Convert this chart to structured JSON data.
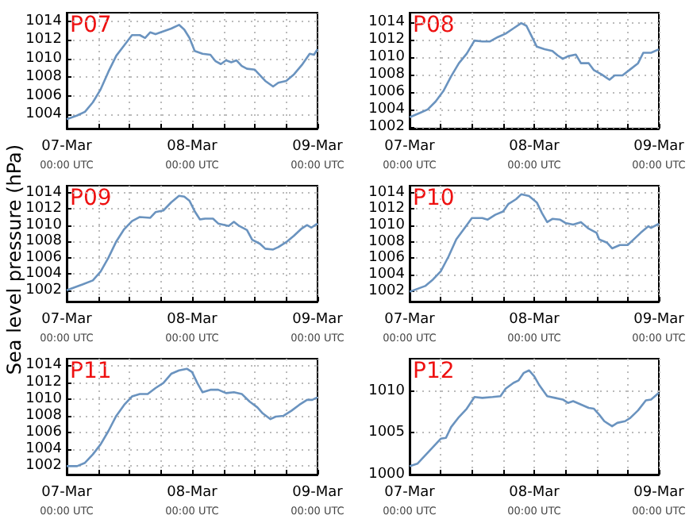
{
  "chart_data": [
    {
      "type": "line",
      "title": "P07",
      "x": [
        "--03-07T00:00",
        "--03-07T02:00",
        "--03-07T03:30",
        "--03-07T05:00",
        "--03-07T06:30",
        "--03-07T08:00",
        "--03-07T09:30",
        "--03-07T11:00",
        "--03-07T12:30",
        "--03-07T14:00",
        "--03-07T15:00",
        "--03-07T16:00",
        "--03-07T17:00",
        "--03-07T18:30",
        "--03-07T20:00",
        "--03-07T21:30",
        "--03-07T22:30",
        "--03-07T23:30",
        "--03-08T00:30",
        "--03-08T02:00",
        "--03-08T03:30",
        "--03-08T04:30",
        "--03-08T05:30",
        "--03-08T06:30",
        "--03-08T07:30",
        "--03-08T08:30",
        "--03-08T09:30",
        "--03-08T10:30",
        "--03-08T12:00",
        "--03-08T13:00",
        "--03-08T14:00",
        "--03-08T15:30",
        "--03-08T16:30",
        "--03-08T18:00",
        "--03-08T19:30",
        "--03-08T21:00",
        "--03-08T22:30",
        "--03-08T23:20",
        "--03-09T00:00"
      ],
      "series": [
        {
          "color": "#6a93bf",
          "values": [
            1003.5,
            1003.9,
            1004.3,
            1005.3,
            1006.7,
            1008.6,
            1010.3,
            1011.4,
            1012.5,
            1012.5,
            1012.2,
            1012.8,
            1012.6,
            1012.9,
            1013.2,
            1013.6,
            1013.1,
            1012.2,
            1010.8,
            1010.5,
            1010.4,
            1009.7,
            1009.4,
            1009.8,
            1009.6,
            1009.8,
            1009.2,
            1008.9,
            1008.8,
            1008.2,
            1007.6,
            1007.0,
            1007.4,
            1007.6,
            1008.3,
            1009.3,
            1010.5,
            1010.4,
            1011.0
          ]
        }
      ],
      "xlim": [
        "--03-07T00:00",
        "--03-09T00:00"
      ],
      "xticks": [
        {
          "value": "--03-07T00:00",
          "label": "07-Mar\n00:00 UTC"
        },
        {
          "value": "--03-07T06:00",
          "label": null
        },
        {
          "value": "--03-07T12:00",
          "label": null
        },
        {
          "value": "--03-07T18:00",
          "label": null
        },
        {
          "value": "--03-08T00:00",
          "label": "08-Mar\n00:00 UTC"
        },
        {
          "value": "--03-08T06:00",
          "label": null
        },
        {
          "value": "--03-08T12:00",
          "label": null
        },
        {
          "value": "--03-08T18:00",
          "label": null
        },
        {
          "value": "--03-09T00:00",
          "label": "09-Mar\n00:00 UTC"
        }
      ],
      "ylim": [
        1002.5,
        1014.9
      ],
      "yticks": [
        1004,
        1006,
        1008,
        1010,
        1012,
        1014
      ],
      "grid": true,
      "marker": "none",
      "line_style": "solid"
    },
    {
      "type": "line",
      "title": "P08",
      "x": [
        "--03-07T00:00",
        "--03-07T02:00",
        "--03-07T03:30",
        "--03-07T05:00",
        "--03-07T06:30",
        "--03-07T08:00",
        "--03-07T09:30",
        "--03-07T11:00",
        "--03-07T12:30",
        "--03-07T14:00",
        "--03-07T15:30",
        "--03-07T17:00",
        "--03-07T18:30",
        "--03-07T20:00",
        "--03-07T21:30",
        "--03-07T22:30",
        "--03-07T23:30",
        "--03-08T00:30",
        "--03-08T02:00",
        "--03-08T03:30",
        "--03-08T04:30",
        "--03-08T05:30",
        "--03-08T06:30",
        "--03-08T08:00",
        "--03-08T09:00",
        "--03-08T10:30",
        "--03-08T11:30",
        "--03-08T13:00",
        "--03-08T14:30",
        "--03-08T15:30",
        "--03-08T17:00",
        "--03-08T18:30",
        "--03-08T20:00",
        "--03-08T21:00",
        "--03-08T22:30",
        "--03-09T00:00"
      ],
      "series": [
        {
          "color": "#6a93bf",
          "values": [
            1003.1,
            1003.6,
            1004.0,
            1004.9,
            1006.1,
            1007.8,
            1009.3,
            1010.4,
            1011.9,
            1011.8,
            1011.8,
            1012.3,
            1012.7,
            1013.3,
            1013.9,
            1013.6,
            1012.4,
            1011.2,
            1010.9,
            1010.7,
            1010.2,
            1009.8,
            1010.1,
            1010.3,
            1009.3,
            1009.3,
            1008.5,
            1008.0,
            1007.4,
            1007.9,
            1007.9,
            1008.6,
            1009.3,
            1010.5,
            1010.5,
            1010.9
          ]
        }
      ],
      "xlim": [
        "--03-07T00:00",
        "--03-09T00:00"
      ],
      "xticks": [
        {
          "value": "--03-07T00:00",
          "label": "07-Mar\n00:00 UTC"
        },
        {
          "value": "--03-07T06:00",
          "label": null
        },
        {
          "value": "--03-07T12:00",
          "label": null
        },
        {
          "value": "--03-07T18:00",
          "label": null
        },
        {
          "value": "--03-08T00:00",
          "label": "08-Mar\n00:00 UTC"
        },
        {
          "value": "--03-08T06:00",
          "label": null
        },
        {
          "value": "--03-08T12:00",
          "label": null
        },
        {
          "value": "--03-08T18:00",
          "label": null
        },
        {
          "value": "--03-09T00:00",
          "label": "09-Mar\n00:00 UTC"
        }
      ],
      "ylim": [
        1001.8,
        1015.1
      ],
      "yticks": [
        1002,
        1004,
        1006,
        1008,
        1010,
        1012,
        1014
      ],
      "grid": true,
      "marker": "none",
      "line_style": "solid"
    },
    {
      "type": "line",
      "title": "P09",
      "ylabel": "Sea level pressure (hPa)",
      "x": [
        "--03-07T00:00",
        "--03-07T03:00",
        "--03-07T05:00",
        "--03-07T06:30",
        "--03-07T08:00",
        "--03-07T09:30",
        "--03-07T11:00",
        "--03-07T12:30",
        "--03-07T14:00",
        "--03-07T16:00",
        "--03-07T17:00",
        "--03-07T18:30",
        "--03-07T20:00",
        "--03-07T21:30",
        "--03-07T22:30",
        "--03-07T23:30",
        "--03-08T00:30",
        "--03-08T01:30",
        "--03-08T02:30",
        "--03-08T04:00",
        "--03-08T05:00",
        "--03-08T07:00",
        "--03-08T08:00",
        "--03-08T09:00",
        "--03-08T10:30",
        "--03-08T11:30",
        "--03-08T13:00",
        "--03-08T14:00",
        "--03-08T15:30",
        "--03-08T16:30",
        "--03-08T18:00",
        "--03-08T19:30",
        "--03-08T21:00",
        "--03-08T22:00",
        "--03-08T22:50",
        "--03-09T00:00"
      ],
      "series": [
        {
          "color": "#6a93bf",
          "values": [
            1002.0,
            1002.7,
            1003.2,
            1004.3,
            1006.0,
            1008.0,
            1009.5,
            1010.5,
            1011.0,
            1010.9,
            1011.6,
            1011.8,
            1012.8,
            1013.6,
            1013.5,
            1013.0,
            1011.7,
            1010.7,
            1010.8,
            1010.8,
            1010.2,
            1009.9,
            1010.4,
            1009.9,
            1009.4,
            1008.2,
            1007.7,
            1007.1,
            1007.0,
            1007.3,
            1007.9,
            1008.7,
            1009.6,
            1010.0,
            1009.7,
            1010.2
          ]
        }
      ],
      "xlim": [
        "--03-07T00:00",
        "--03-09T00:00"
      ],
      "xticks": [
        {
          "value": "--03-07T00:00",
          "label": "07-Mar\n00:00 UTC"
        },
        {
          "value": "--03-07T06:00",
          "label": null
        },
        {
          "value": "--03-07T12:00",
          "label": null
        },
        {
          "value": "--03-07T18:00",
          "label": null
        },
        {
          "value": "--03-08T00:00",
          "label": "08-Mar\n00:00 UTC"
        },
        {
          "value": "--03-08T06:00",
          "label": null
        },
        {
          "value": "--03-08T12:00",
          "label": null
        },
        {
          "value": "--03-08T18:00",
          "label": null
        },
        {
          "value": "--03-09T00:00",
          "label": "09-Mar\n00:00 UTC"
        }
      ],
      "ylim": [
        1000.6,
        1014.85
      ],
      "yticks": [
        1002,
        1004,
        1006,
        1008,
        1010,
        1012,
        1014
      ],
      "grid": true,
      "marker": "none",
      "line_style": "solid"
    },
    {
      "type": "line",
      "title": "P10",
      "x": [
        "--03-07T00:00",
        "--03-07T03:00",
        "--03-07T04:30",
        "--03-07T06:00",
        "--03-07T07:30",
        "--03-07T09:00",
        "--03-07T10:30",
        "--03-07T12:00",
        "--03-07T14:00",
        "--03-07T15:00",
        "--03-07T16:30",
        "--03-07T18:00",
        "--03-07T19:00",
        "--03-07T20:30",
        "--03-07T21:30",
        "--03-07T23:00",
        "--03-08T00:30",
        "--03-08T01:30",
        "--03-08T02:30",
        "--03-08T03:30",
        "--03-08T05:00",
        "--03-08T06:00",
        "--03-08T07:30",
        "--03-08T09:00",
        "--03-08T10:30",
        "--03-08T12:00",
        "--03-08T12:30",
        "--03-08T14:00",
        "--03-08T15:00",
        "--03-08T16:30",
        "--03-08T18:00",
        "--03-08T19:00",
        "--03-08T20:30",
        "--03-08T22:00",
        "--03-08T22:30",
        "--03-09T00:00"
      ],
      "series": [
        {
          "color": "#6a93bf",
          "values": [
            1001.9,
            1002.6,
            1003.4,
            1004.4,
            1006.2,
            1008.3,
            1009.6,
            1010.9,
            1010.9,
            1010.7,
            1011.3,
            1011.7,
            1012.6,
            1013.2,
            1013.8,
            1013.6,
            1012.8,
            1011.5,
            1010.4,
            1010.8,
            1010.7,
            1010.3,
            1010.1,
            1010.4,
            1009.6,
            1009.1,
            1008.3,
            1007.9,
            1007.2,
            1007.6,
            1007.6,
            1008.2,
            1009.1,
            1009.9,
            1009.7,
            1010.2
          ]
        }
      ],
      "xlim": [
        "--03-07T00:00",
        "--03-09T00:00"
      ],
      "xticks": [
        {
          "value": "--03-07T00:00",
          "label": "07-Mar\n00:00 UTC"
        },
        {
          "value": "--03-07T06:00",
          "label": null
        },
        {
          "value": "--03-07T12:00",
          "label": null
        },
        {
          "value": "--03-07T18:00",
          "label": null
        },
        {
          "value": "--03-08T00:00",
          "label": "08-Mar\n00:00 UTC"
        },
        {
          "value": "--03-08T06:00",
          "label": null
        },
        {
          "value": "--03-08T12:00",
          "label": null
        },
        {
          "value": "--03-08T18:00",
          "label": null
        },
        {
          "value": "--03-09T00:00",
          "label": "09-Mar\n00:00 UTC"
        }
      ],
      "ylim": [
        1000.7,
        1014.85
      ],
      "yticks": [
        1002,
        1004,
        1006,
        1008,
        1010,
        1012,
        1014
      ],
      "grid": true,
      "marker": "none",
      "line_style": "solid"
    },
    {
      "type": "line",
      "title": "P11",
      "x": [
        "--03-07T00:00",
        "--03-07T02:00",
        "--03-07T03:30",
        "--03-07T05:00",
        "--03-07T06:30",
        "--03-07T08:00",
        "--03-07T09:30",
        "--03-07T11:00",
        "--03-07T12:30",
        "--03-07T14:00",
        "--03-07T15:30",
        "--03-07T17:00",
        "--03-07T18:30",
        "--03-07T20:00",
        "--03-07T21:30",
        "--03-07T23:00",
        "--03-08T00:00",
        "--03-08T01:00",
        "--03-08T02:00",
        "--03-08T03:30",
        "--03-08T05:00",
        "--03-08T06:30",
        "--03-08T08:00",
        "--03-08T09:30",
        "--03-08T11:00",
        "--03-08T12:30",
        "--03-08T13:30",
        "--03-08T15:00",
        "--03-08T16:00",
        "--03-08T17:30",
        "--03-08T19:00",
        "--03-08T20:30",
        "--03-08T22:00",
        "--03-08T23:00",
        "--03-09T00:00"
      ],
      "series": [
        {
          "color": "#6a93bf",
          "values": [
            1002.0,
            1002.0,
            1002.4,
            1003.4,
            1004.6,
            1006.2,
            1008.0,
            1009.3,
            1010.3,
            1010.6,
            1010.6,
            1011.3,
            1011.9,
            1013.0,
            1013.4,
            1013.6,
            1013.2,
            1011.9,
            1010.8,
            1011.1,
            1011.1,
            1010.7,
            1010.8,
            1010.6,
            1009.7,
            1009.0,
            1008.3,
            1007.6,
            1007.9,
            1008.0,
            1008.6,
            1009.3,
            1009.9,
            1009.9,
            1010.2
          ]
        }
      ],
      "xlim": [
        "--03-07T00:00",
        "--03-09T00:00"
      ],
      "xticks": [
        {
          "value": "--03-07T00:00",
          "label": "07-Mar\n00:00 UTC"
        },
        {
          "value": "--03-07T06:00",
          "label": null
        },
        {
          "value": "--03-07T12:00",
          "label": null
        },
        {
          "value": "--03-07T18:00",
          "label": null
        },
        {
          "value": "--03-08T00:00",
          "label": "08-Mar\n00:00 UTC"
        },
        {
          "value": "--03-08T06:00",
          "label": null
        },
        {
          "value": "--03-08T12:00",
          "label": null
        },
        {
          "value": "--03-08T18:00",
          "label": null
        },
        {
          "value": "--03-09T00:00",
          "label": "09-Mar\n00:00 UTC"
        }
      ],
      "ylim": [
        1001,
        1014.8
      ],
      "yticks": [
        1002,
        1004,
        1006,
        1008,
        1010,
        1012,
        1014
      ],
      "grid": true,
      "marker": "none",
      "line_style": "solid"
    },
    {
      "type": "line",
      "title": "P12",
      "x": [
        "--03-07T00:00",
        "--03-07T01:30",
        "--03-07T03:00",
        "--03-07T04:30",
        "--03-07T06:00",
        "--03-07T07:00",
        "--03-07T08:00",
        "--03-07T09:30",
        "--03-07T11:00",
        "--03-07T12:30",
        "--03-07T14:00",
        "--03-07T16:00",
        "--03-07T17:30",
        "--03-07T18:30",
        "--03-07T20:00",
        "--03-07T21:00",
        "--03-07T22:00",
        "--03-07T23:00",
        "--03-08T00:00",
        "--03-08T01:00",
        "--03-08T02:30",
        "--03-08T04:00",
        "--03-08T05:30",
        "--03-08T06:30",
        "--03-08T07:30",
        "--03-08T09:00",
        "--03-08T10:30",
        "--03-08T11:30",
        "--03-08T12:30",
        "--03-08T13:30",
        "--03-08T15:00",
        "--03-08T16:00",
        "--03-08T17:30",
        "--03-08T18:30",
        "--03-08T20:00",
        "--03-08T21:30",
        "--03-08T22:30",
        "--03-09T00:00"
      ],
      "series": [
        {
          "color": "#6a93bf",
          "values": [
            1001.0,
            1001.3,
            1002.3,
            1003.3,
            1004.3,
            1004.4,
            1005.7,
            1006.9,
            1007.9,
            1009.3,
            1009.2,
            1009.3,
            1009.4,
            1010.3,
            1011.0,
            1011.3,
            1012.2,
            1012.5,
            1011.8,
            1010.7,
            1009.4,
            1009.2,
            1009.0,
            1008.6,
            1008.8,
            1008.4,
            1008.0,
            1007.9,
            1007.2,
            1006.4,
            1005.8,
            1006.2,
            1006.4,
            1006.8,
            1007.7,
            1008.9,
            1009.0,
            1009.8
          ]
        }
      ],
      "xlim": [
        "--03-07T00:00",
        "--03-09T00:00"
      ],
      "xticks": [
        {
          "value": "--03-07T00:00",
          "label": "07-Mar\n00:00 UTC"
        },
        {
          "value": "--03-07T06:00",
          "label": null
        },
        {
          "value": "--03-07T12:00",
          "label": null
        },
        {
          "value": "--03-07T18:00",
          "label": null
        },
        {
          "value": "--03-08T00:00",
          "label": "08-Mar\n00:00 UTC"
        },
        {
          "value": "--03-08T06:00",
          "label": null
        },
        {
          "value": "--03-08T12:00",
          "label": null
        },
        {
          "value": "--03-08T18:00",
          "label": null
        },
        {
          "value": "--03-09T00:00",
          "label": "09-Mar\n00:00 UTC"
        }
      ],
      "ylim": [
        1000,
        1013.9
      ],
      "yticks": [
        1000,
        1005,
        1010
      ],
      "grid": true,
      "marker": "none",
      "line_style": "solid"
    }
  ]
}
